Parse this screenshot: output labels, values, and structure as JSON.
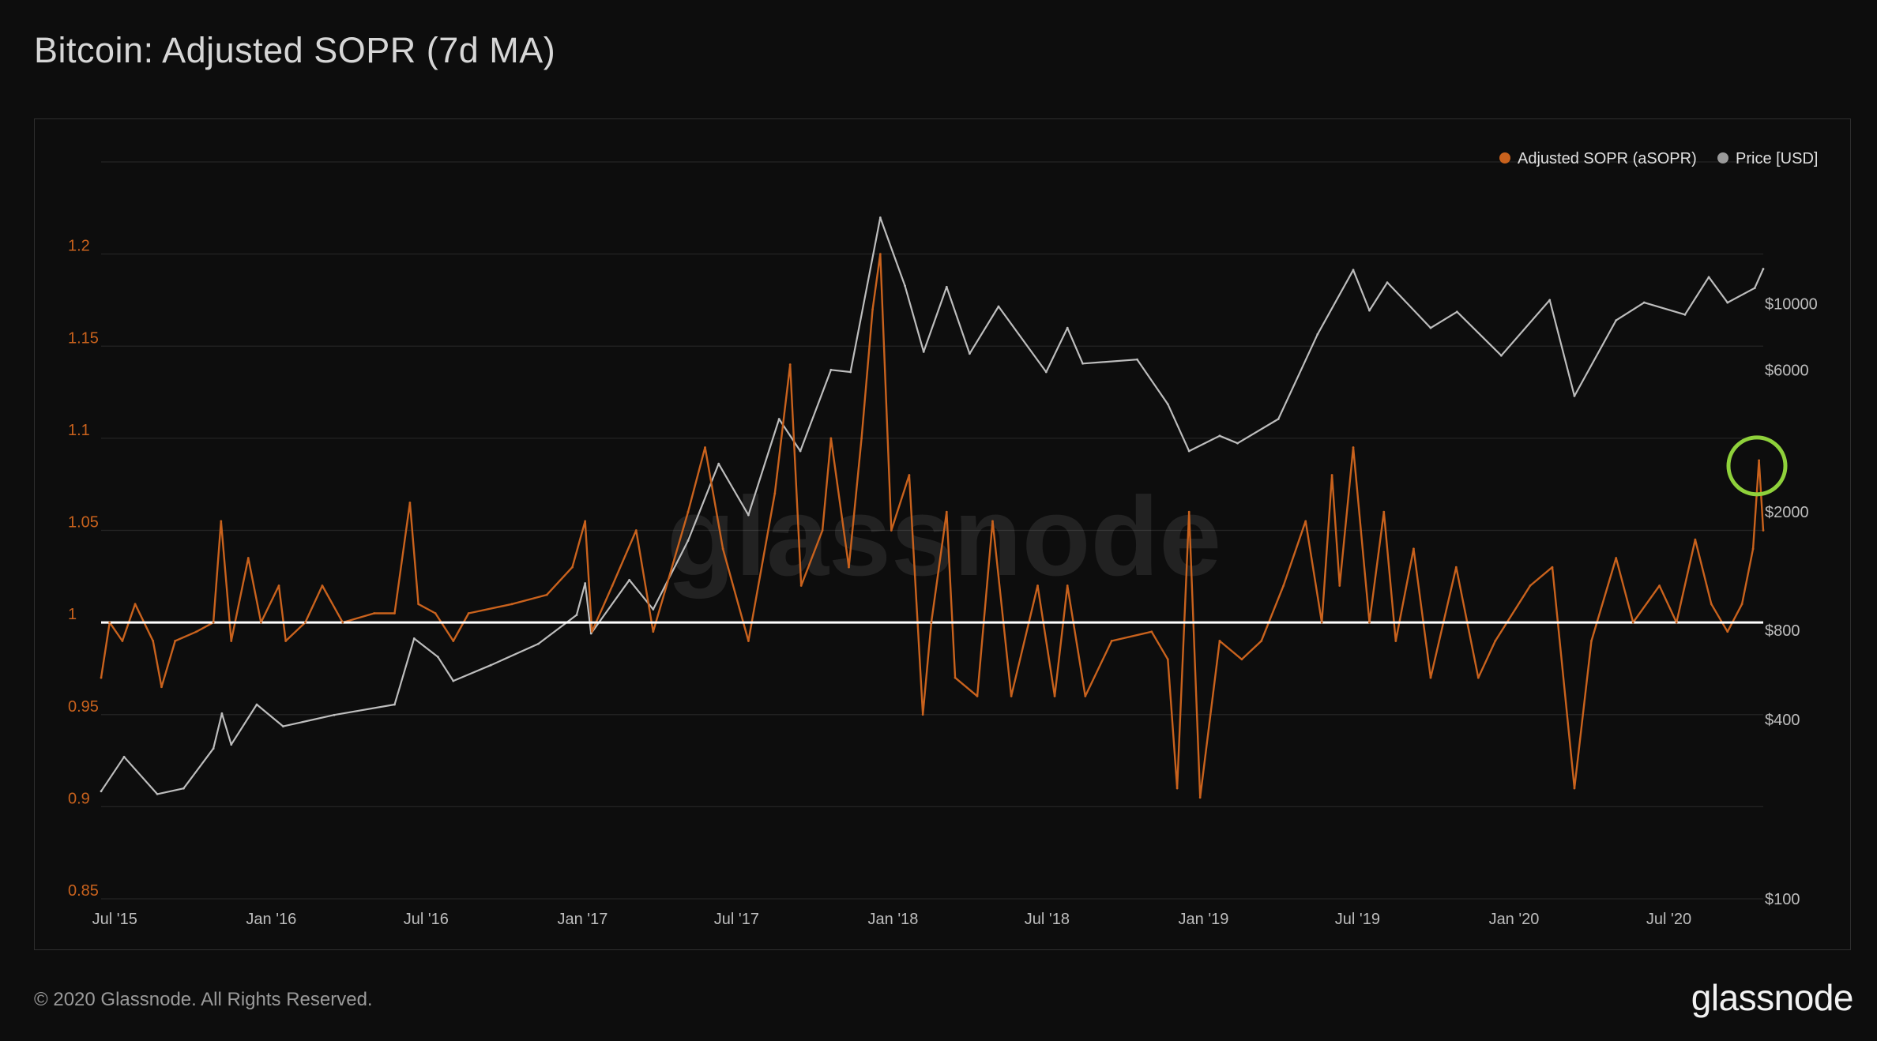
{
  "title": "Bitcoin: Adjusted SOPR (7d MA)",
  "footer": "© 2020 Glassnode. All Rights Reserved.",
  "logo": "glassnode",
  "watermark": "glassnode",
  "colors": {
    "sopr": "#c9621d",
    "price": "#bdbdbd",
    "baseline": "#ffffff",
    "highlight": "#8fd13b",
    "background": "#0d0d0d"
  },
  "chart_data": {
    "type": "line",
    "title": "Bitcoin: Adjusted SOPR (7d MA)",
    "legend": [
      {
        "name": "Adjusted SOPR (aSOPR)",
        "color": "#c9621d"
      },
      {
        "name": "Price [USD]",
        "color": "#9a9a9a"
      }
    ],
    "legend_placement": "top-right",
    "x_ticks": [
      "Jul '15",
      "Jan '16",
      "Jul '16",
      "Jan '17",
      "Jul '17",
      "Jan '18",
      "Jul '18",
      "Jan '19",
      "Jul '19",
      "Jan '20",
      "Jul '20"
    ],
    "x_range": [
      "2015-06-15",
      "2020-10-20"
    ],
    "left_axis": {
      "ticks": [
        "1.2",
        "1.15",
        "1.1",
        "1.05",
        "1",
        "0.95",
        "0.9",
        "0.85"
      ],
      "range": [
        0.85,
        1.25
      ]
    },
    "right_axis": {
      "scale": "log",
      "ticks": [
        "$10000",
        "$6000",
        "$2000",
        "$800",
        "$400",
        "$100"
      ],
      "range": [
        100,
        30000
      ]
    },
    "reference_line": 1,
    "annotation": {
      "type": "circle",
      "date": "2020-10-20",
      "value": 1.085
    },
    "series": [
      {
        "name": "Adjusted SOPR (aSOPR)",
        "axis": "left",
        "points": [
          [
            "2015-06-15",
            0.97
          ],
          [
            "2015-06-25",
            1.0
          ],
          [
            "2015-07-10",
            0.99
          ],
          [
            "2015-07-25",
            1.01
          ],
          [
            "2015-08-15",
            0.99
          ],
          [
            "2015-08-25",
            0.965
          ],
          [
            "2015-09-10",
            0.99
          ],
          [
            "2015-10-05",
            0.995
          ],
          [
            "2015-10-25",
            1.0
          ],
          [
            "2015-11-03",
            1.055
          ],
          [
            "2015-11-15",
            0.99
          ],
          [
            "2015-12-05",
            1.035
          ],
          [
            "2015-12-20",
            1.0
          ],
          [
            "2016-01-10",
            1.02
          ],
          [
            "2016-01-18",
            0.99
          ],
          [
            "2016-02-10",
            1.0
          ],
          [
            "2016-03-01",
            1.02
          ],
          [
            "2016-03-25",
            1.0
          ],
          [
            "2016-05-01",
            1.005
          ],
          [
            "2016-05-25",
            1.005
          ],
          [
            "2016-06-12",
            1.065
          ],
          [
            "2016-06-22",
            1.01
          ],
          [
            "2016-07-12",
            1.005
          ],
          [
            "2016-08-02",
            0.99
          ],
          [
            "2016-08-20",
            1.005
          ],
          [
            "2016-10-10",
            1.01
          ],
          [
            "2016-11-20",
            1.015
          ],
          [
            "2016-12-20",
            1.03
          ],
          [
            "2017-01-04",
            1.055
          ],
          [
            "2017-01-12",
            0.995
          ],
          [
            "2017-02-05",
            1.02
          ],
          [
            "2017-03-05",
            1.05
          ],
          [
            "2017-03-25",
            0.995
          ],
          [
            "2017-05-05",
            1.06
          ],
          [
            "2017-05-25",
            1.095
          ],
          [
            "2017-06-15",
            1.04
          ],
          [
            "2017-07-15",
            0.99
          ],
          [
            "2017-08-15",
            1.07
          ],
          [
            "2017-09-02",
            1.14
          ],
          [
            "2017-09-15",
            1.02
          ],
          [
            "2017-10-10",
            1.05
          ],
          [
            "2017-10-20",
            1.1
          ],
          [
            "2017-11-10",
            1.03
          ],
          [
            "2017-11-25",
            1.1
          ],
          [
            "2017-12-08",
            1.17
          ],
          [
            "2017-12-17",
            1.2
          ],
          [
            "2017-12-30",
            1.05
          ],
          [
            "2018-01-20",
            1.08
          ],
          [
            "2018-02-05",
            0.95
          ],
          [
            "2018-02-15",
            1.0
          ],
          [
            "2018-03-05",
            1.06
          ],
          [
            "2018-03-15",
            0.97
          ],
          [
            "2018-04-10",
            0.96
          ],
          [
            "2018-04-28",
            1.055
          ],
          [
            "2018-05-20",
            0.96
          ],
          [
            "2018-06-20",
            1.02
          ],
          [
            "2018-07-10",
            0.96
          ],
          [
            "2018-07-25",
            1.02
          ],
          [
            "2018-08-15",
            0.96
          ],
          [
            "2018-09-15",
            0.99
          ],
          [
            "2018-11-01",
            0.995
          ],
          [
            "2018-11-20",
            0.98
          ],
          [
            "2018-12-01",
            0.91
          ],
          [
            "2018-12-15",
            1.06
          ],
          [
            "2018-12-28",
            0.905
          ],
          [
            "2019-01-20",
            0.99
          ],
          [
            "2019-02-15",
            0.98
          ],
          [
            "2019-03-10",
            0.99
          ],
          [
            "2019-04-05",
            1.02
          ],
          [
            "2019-05-01",
            1.055
          ],
          [
            "2019-05-20",
            1.0
          ],
          [
            "2019-06-01",
            1.08
          ],
          [
            "2019-06-10",
            1.02
          ],
          [
            "2019-06-26",
            1.095
          ],
          [
            "2019-07-15",
            1.0
          ],
          [
            "2019-08-01",
            1.06
          ],
          [
            "2019-08-15",
            0.99
          ],
          [
            "2019-09-05",
            1.04
          ],
          [
            "2019-09-25",
            0.97
          ],
          [
            "2019-10-25",
            1.03
          ],
          [
            "2019-11-20",
            0.97
          ],
          [
            "2019-12-10",
            0.99
          ],
          [
            "2020-01-20",
            1.02
          ],
          [
            "2020-02-15",
            1.03
          ],
          [
            "2020-03-12",
            0.91
          ],
          [
            "2020-04-01",
            0.99
          ],
          [
            "2020-04-30",
            1.035
          ],
          [
            "2020-05-20",
            1.0
          ],
          [
            "2020-06-20",
            1.02
          ],
          [
            "2020-07-10",
            1.0
          ],
          [
            "2020-08-01",
            1.045
          ],
          [
            "2020-08-20",
            1.01
          ],
          [
            "2020-09-08",
            0.995
          ],
          [
            "2020-09-25",
            1.01
          ],
          [
            "2020-10-08",
            1.04
          ],
          [
            "2020-10-15",
            1.088
          ],
          [
            "2020-10-20",
            1.05
          ]
        ]
      },
      {
        "name": "Price [USD]",
        "axis": "right",
        "points": [
          [
            "2015-06-15",
            230
          ],
          [
            "2015-07-12",
            300
          ],
          [
            "2015-08-20",
            225
          ],
          [
            "2015-09-20",
            235
          ],
          [
            "2015-10-25",
            320
          ],
          [
            "2015-11-04",
            420
          ],
          [
            "2015-11-15",
            330
          ],
          [
            "2015-12-15",
            450
          ],
          [
            "2016-01-15",
            380
          ],
          [
            "2016-03-15",
            415
          ],
          [
            "2016-05-25",
            450
          ],
          [
            "2016-06-17",
            750
          ],
          [
            "2016-07-15",
            650
          ],
          [
            "2016-08-02",
            540
          ],
          [
            "2016-09-15",
            610
          ],
          [
            "2016-11-10",
            720
          ],
          [
            "2016-12-25",
            900
          ],
          [
            "2017-01-04",
            1150
          ],
          [
            "2017-01-11",
            780
          ],
          [
            "2017-02-25",
            1180
          ],
          [
            "2017-03-25",
            940
          ],
          [
            "2017-05-05",
            1600
          ],
          [
            "2017-06-10",
            2900
          ],
          [
            "2017-07-15",
            1950
          ],
          [
            "2017-08-20",
            4100
          ],
          [
            "2017-09-14",
            3200
          ],
          [
            "2017-10-20",
            6000
          ],
          [
            "2017-11-12",
            5900
          ],
          [
            "2017-12-17",
            19500
          ],
          [
            "2018-01-15",
            11500
          ],
          [
            "2018-02-06",
            6900
          ],
          [
            "2018-03-05",
            11400
          ],
          [
            "2018-04-01",
            6800
          ],
          [
            "2018-05-05",
            9800
          ],
          [
            "2018-06-30",
            5900
          ],
          [
            "2018-07-25",
            8300
          ],
          [
            "2018-08-12",
            6300
          ],
          [
            "2018-10-15",
            6500
          ],
          [
            "2018-11-20",
            4600
          ],
          [
            "2018-12-15",
            3200
          ],
          [
            "2019-01-20",
            3600
          ],
          [
            "2019-02-10",
            3400
          ],
          [
            "2019-03-30",
            4100
          ],
          [
            "2019-05-15",
            7900
          ],
          [
            "2019-06-26",
            13000
          ],
          [
            "2019-07-15",
            9500
          ],
          [
            "2019-08-05",
            11800
          ],
          [
            "2019-09-25",
            8300
          ],
          [
            "2019-10-26",
            9400
          ],
          [
            "2019-12-17",
            6700
          ],
          [
            "2020-02-12",
            10300
          ],
          [
            "2020-03-12",
            4900
          ],
          [
            "2020-04-30",
            8800
          ],
          [
            "2020-06-02",
            10100
          ],
          [
            "2020-07-20",
            9200
          ],
          [
            "2020-08-17",
            12300
          ],
          [
            "2020-09-08",
            10100
          ],
          [
            "2020-10-10",
            11300
          ],
          [
            "2020-10-20",
            13100
          ]
        ]
      }
    ]
  }
}
